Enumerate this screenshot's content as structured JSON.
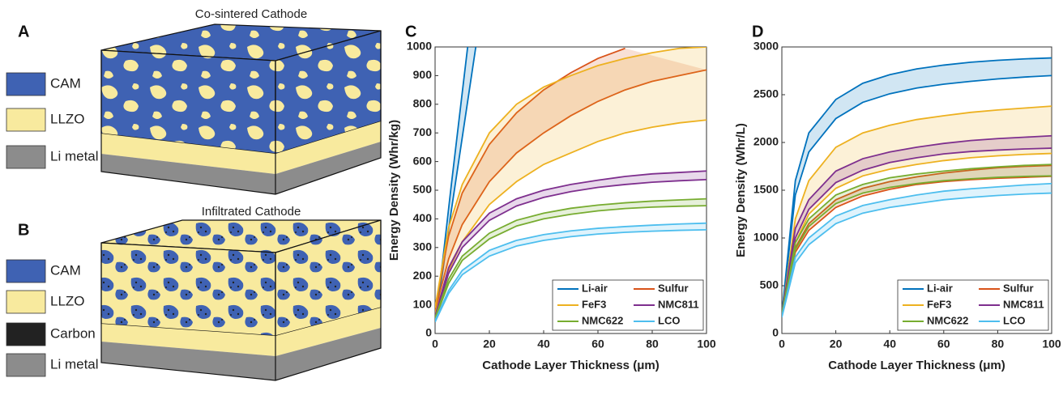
{
  "panels": [
    {
      "label": "A",
      "title": "Co-sintered Cathode",
      "legend": [
        {
          "label": "CAM",
          "color": "#3f62b3"
        },
        {
          "label": "LLZO",
          "color": "#f8ea9e"
        },
        {
          "label": "Li metal",
          "color": "#8c8c8c"
        }
      ]
    },
    {
      "label": "B",
      "title": "Infiltrated Cathode",
      "legend": [
        {
          "label": "CAM",
          "color": "#3f62b3"
        },
        {
          "label": "LLZO",
          "color": "#f8ea9e"
        },
        {
          "label": "Carbon",
          "color": "#222222"
        },
        {
          "label": "Li metal",
          "color": "#8c8c8c"
        }
      ]
    }
  ],
  "chart_data": [
    {
      "type": "band",
      "label": "C",
      "xlabel": "Cathode Layer Thickness (μm)",
      "ylabel": "Energy Density (Whr/kg)",
      "xlim": [
        0,
        100
      ],
      "xticks": [
        0,
        20,
        40,
        60,
        80,
        100
      ],
      "ylim": [
        0,
        1000
      ],
      "yticks": [
        0,
        100,
        200,
        300,
        400,
        500,
        600,
        700,
        800,
        900,
        1000
      ],
      "legend": "lower right",
      "series": [
        {
          "name": "Li-air",
          "color": "#0072bd",
          "x": [
            0,
            3,
            6,
            9,
            12,
            15
          ],
          "low": [
            40,
            230,
            430,
            620,
            810,
            1000
          ],
          "high": [
            40,
            270,
            520,
            760,
            1000,
            null
          ]
        },
        {
          "name": "Sulfur",
          "color": "#d95319",
          "x": [
            0,
            5,
            10,
            20,
            30,
            40,
            50,
            60,
            70,
            80,
            90,
            100
          ],
          "low": [
            80,
            260,
            380,
            530,
            630,
            700,
            760,
            810,
            850,
            880,
            900,
            920
          ],
          "high": [
            90,
            340,
            490,
            660,
            770,
            850,
            910,
            960,
            995,
            null,
            null,
            null
          ]
        },
        {
          "name": "FeF3",
          "color": "#edb120",
          "x": [
            0,
            5,
            10,
            20,
            30,
            40,
            50,
            60,
            70,
            80,
            90,
            100
          ],
          "low": [
            70,
            220,
            320,
            450,
            530,
            590,
            630,
            670,
            700,
            720,
            735,
            745
          ],
          "high": [
            90,
            370,
            520,
            700,
            800,
            860,
            900,
            935,
            960,
            980,
            995,
            1000
          ]
        },
        {
          "name": "NMC811",
          "color": "#7e2f8e",
          "x": [
            0,
            5,
            10,
            20,
            30,
            40,
            50,
            60,
            70,
            80,
            90,
            100
          ],
          "low": [
            55,
            210,
            300,
            395,
            445,
            475,
            495,
            510,
            520,
            528,
            533,
            537
          ],
          "high": [
            60,
            230,
            320,
            420,
            470,
            500,
            520,
            535,
            548,
            557,
            562,
            567
          ]
        },
        {
          "name": "NMC622",
          "color": "#77ac30",
          "x": [
            0,
            5,
            10,
            20,
            30,
            40,
            50,
            60,
            70,
            80,
            90,
            100
          ],
          "low": [
            50,
            175,
            255,
            330,
            375,
            400,
            416,
            428,
            436,
            441,
            444,
            446
          ],
          "high": [
            55,
            190,
            270,
            350,
            395,
            420,
            437,
            448,
            456,
            462,
            466,
            470
          ]
        },
        {
          "name": "LCO",
          "color": "#4dbeee",
          "x": [
            0,
            5,
            10,
            20,
            30,
            40,
            50,
            60,
            70,
            80,
            90,
            100
          ],
          "low": [
            40,
            140,
            205,
            270,
            305,
            325,
            338,
            347,
            353,
            357,
            360,
            362
          ],
          "high": [
            45,
            150,
            220,
            290,
            325,
            345,
            358,
            367,
            373,
            378,
            382,
            385
          ]
        }
      ]
    },
    {
      "type": "band",
      "label": "D",
      "xlabel": "Cathode Layer Thickness (μm)",
      "ylabel": "Energy Density (Whr/L)",
      "xlim": [
        0,
        100
      ],
      "xticks": [
        0,
        20,
        40,
        60,
        80,
        100
      ],
      "ylim": [
        0,
        3000
      ],
      "yticks": [
        0,
        500,
        1000,
        1500,
        2000,
        2500,
        3000
      ],
      "legend": "lower right",
      "series": [
        {
          "name": "Li-air",
          "color": "#0072bd",
          "x": [
            0,
            5,
            10,
            20,
            30,
            40,
            50,
            60,
            70,
            80,
            90,
            100
          ],
          "low": [
            200,
            1450,
            1900,
            2250,
            2420,
            2510,
            2570,
            2610,
            2640,
            2665,
            2685,
            2700
          ],
          "high": [
            200,
            1600,
            2100,
            2450,
            2620,
            2710,
            2770,
            2810,
            2840,
            2860,
            2875,
            2885
          ]
        },
        {
          "name": "Sulfur",
          "color": "#d95319",
          "x": [
            0,
            5,
            10,
            20,
            30,
            40,
            50,
            60,
            70,
            80,
            90,
            100
          ],
          "low": [
            200,
            850,
            1080,
            1320,
            1440,
            1510,
            1560,
            1590,
            1610,
            1625,
            1635,
            1645
          ],
          "high": [
            200,
            900,
            1150,
            1400,
            1520,
            1590,
            1640,
            1680,
            1710,
            1735,
            1750,
            1760
          ]
        },
        {
          "name": "FeF3",
          "color": "#edb120",
          "x": [
            0,
            5,
            10,
            20,
            30,
            40,
            50,
            60,
            70,
            80,
            90,
            100
          ],
          "low": [
            200,
            950,
            1250,
            1520,
            1650,
            1720,
            1770,
            1810,
            1840,
            1860,
            1875,
            1885
          ],
          "high": [
            200,
            1200,
            1600,
            1950,
            2100,
            2180,
            2240,
            2280,
            2315,
            2340,
            2360,
            2380
          ]
        },
        {
          "name": "NMC811",
          "color": "#7e2f8e",
          "x": [
            0,
            5,
            10,
            20,
            30,
            40,
            50,
            60,
            70,
            80,
            90,
            100
          ],
          "low": [
            200,
            1000,
            1300,
            1580,
            1710,
            1790,
            1840,
            1880,
            1905,
            1920,
            1932,
            1940
          ],
          "high": [
            200,
            1100,
            1400,
            1700,
            1830,
            1900,
            1950,
            1990,
            2020,
            2040,
            2055,
            2070
          ]
        },
        {
          "name": "NMC622",
          "color": "#77ac30",
          "x": [
            0,
            5,
            10,
            20,
            30,
            40,
            50,
            60,
            70,
            80,
            90,
            100
          ],
          "low": [
            200,
            880,
            1120,
            1360,
            1470,
            1530,
            1570,
            1600,
            1620,
            1635,
            1645,
            1650
          ],
          "high": [
            200,
            950,
            1200,
            1450,
            1560,
            1630,
            1670,
            1700,
            1725,
            1745,
            1760,
            1770
          ]
        },
        {
          "name": "LCO",
          "color": "#4dbeee",
          "x": [
            0,
            5,
            10,
            20,
            30,
            40,
            50,
            60,
            70,
            80,
            90,
            100
          ],
          "low": [
            170,
            740,
            930,
            1150,
            1260,
            1320,
            1360,
            1400,
            1425,
            1445,
            1460,
            1470
          ],
          "high": [
            180,
            800,
            1000,
            1230,
            1340,
            1400,
            1450,
            1490,
            1515,
            1535,
            1555,
            1570
          ]
        }
      ]
    }
  ]
}
